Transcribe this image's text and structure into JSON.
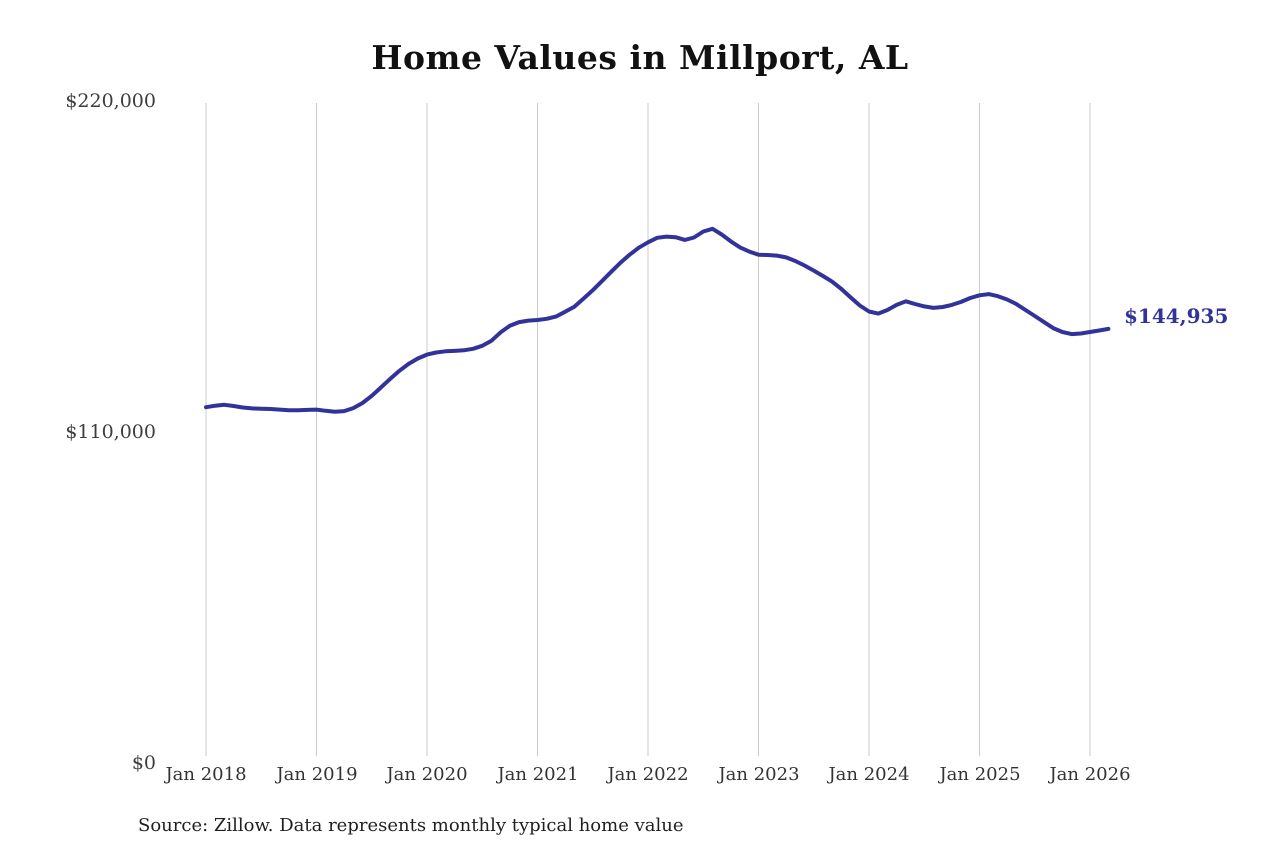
{
  "chart": {
    "title": "Home Values in Millport, AL",
    "end_label": "$144,935",
    "source": "Source: Zillow. Data represents monthly typical home value"
  },
  "chart_data": {
    "type": "line",
    "title": "Home Values in Millport, AL",
    "series_name": "Monthly typical home value",
    "unit": "USD",
    "frequency": "monthly",
    "legend": "none",
    "grid": "vertical-only",
    "line_color": "#32329b",
    "grid_color": "#cbcbcb",
    "end_value": 144935,
    "ylim": [
      0,
      220000
    ],
    "y_ticks": [
      {
        "value": 0,
        "label": "$0"
      },
      {
        "value": 110000,
        "label": "$110,000"
      },
      {
        "value": 220000,
        "label": "$220,000"
      }
    ],
    "x_ticks": [
      "Jan 2018",
      "Jan 2019",
      "Jan 2020",
      "Jan 2021",
      "Jan 2022",
      "Jan 2023",
      "Jan 2024",
      "Jan 2025",
      "Jan 2026"
    ],
    "x": [
      "2018-01",
      "2018-02",
      "2018-03",
      "2018-04",
      "2018-05",
      "2018-06",
      "2018-07",
      "2018-08",
      "2018-09",
      "2018-10",
      "2018-11",
      "2018-12",
      "2019-01",
      "2019-02",
      "2019-03",
      "2019-04",
      "2019-05",
      "2019-06",
      "2019-07",
      "2019-08",
      "2019-09",
      "2019-10",
      "2019-11",
      "2019-12",
      "2020-01",
      "2020-02",
      "2020-03",
      "2020-04",
      "2020-05",
      "2020-06",
      "2020-07",
      "2020-08",
      "2020-09",
      "2020-10",
      "2020-11",
      "2020-12",
      "2021-01",
      "2021-02",
      "2021-03",
      "2021-04",
      "2021-05",
      "2021-06",
      "2021-07",
      "2021-08",
      "2021-09",
      "2021-10",
      "2021-11",
      "2021-12",
      "2022-01",
      "2022-02",
      "2022-03",
      "2022-04",
      "2022-05",
      "2022-06",
      "2022-07",
      "2022-08",
      "2022-09",
      "2022-10",
      "2022-11",
      "2022-12",
      "2023-01",
      "2023-02",
      "2023-03",
      "2023-04",
      "2023-05",
      "2023-06",
      "2023-07",
      "2023-08",
      "2023-09",
      "2023-10",
      "2023-11",
      "2023-12",
      "2024-01",
      "2024-02",
      "2024-03",
      "2024-04",
      "2024-05",
      "2024-06",
      "2024-07",
      "2024-08",
      "2024-09",
      "2024-10",
      "2024-11",
      "2024-12",
      "2025-01",
      "2025-02",
      "2025-03",
      "2025-04",
      "2025-05",
      "2025-06",
      "2025-07",
      "2025-08",
      "2025-09",
      "2025-10",
      "2025-11",
      "2025-12",
      "2026-01",
      "2026-02",
      "2026-03"
    ],
    "values": [
      118900,
      119400,
      119700,
      119300,
      118800,
      118500,
      118400,
      118300,
      118100,
      117900,
      117900,
      118000,
      118100,
      117700,
      117400,
      117600,
      118600,
      120300,
      122700,
      125500,
      128300,
      131000,
      133300,
      135100,
      136400,
      137100,
      137500,
      137600,
      137800,
      138300,
      139300,
      141000,
      143800,
      146000,
      147200,
      147700,
      147900,
      148300,
      149000,
      150600,
      152300,
      155000,
      157800,
      160800,
      163900,
      166900,
      169600,
      171900,
      173700,
      175200,
      175600,
      175400,
      174500,
      175300,
      177300,
      178200,
      176300,
      174000,
      172000,
      170600,
      169600,
      169500,
      169300,
      168700,
      167500,
      166000,
      164300,
      162500,
      160600,
      158200,
      155400,
      152700,
      150700,
      150000,
      151200,
      152900,
      154100,
      153200,
      152400,
      151900,
      152200,
      152900,
      153900,
      155200,
      156100,
      156500,
      155800,
      154700,
      153200,
      151200,
      149200,
      147200,
      145200,
      143900,
      143200,
      143400,
      143900,
      144400,
      144935
    ]
  }
}
